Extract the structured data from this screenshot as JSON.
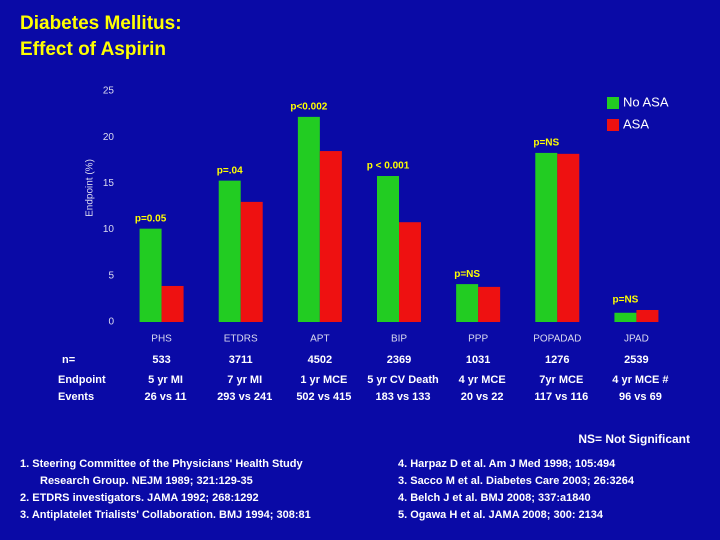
{
  "title": [
    "Diabetes Mellitus:",
    "Effect of Aspirin"
  ],
  "chart_data": {
    "type": "bar",
    "y_label": "Endpoint (%)",
    "categories": [
      "PHS",
      "ETDRS",
      "APT",
      "BIP",
      "PPP",
      "POPADAD",
      "JPAD"
    ],
    "series": [
      {
        "name": "No ASA",
        "color": "#22cc22",
        "values": [
          10.1,
          15.3,
          22.2,
          15.8,
          4.1,
          18.3,
          1.0
        ]
      },
      {
        "name": "ASA",
        "color": "#ee1111",
        "values": [
          3.9,
          13.0,
          18.5,
          10.8,
          3.8,
          18.2,
          1.3
        ]
      }
    ],
    "annotations": [
      "p=0.05",
      "p=.04",
      "p<0.002",
      "p < 0.001",
      "p=NS",
      "p=NS",
      "p=NS"
    ],
    "ylim": [
      0,
      25
    ],
    "yticks": [
      0,
      5,
      10,
      15,
      20,
      25
    ],
    "grid": false,
    "legend": "top-right"
  },
  "study_table": {
    "rows": [
      [
        "n=",
        "533",
        "3711",
        "4502",
        "2369",
        "1031",
        "1276",
        "2539"
      ],
      [
        "Endpoint",
        "5 yr MI",
        "7 yr MI",
        "1 yr MCE",
        "5 yr CV Death",
        "4 yr MCE",
        "7yr MCE",
        "4 yr MCE #"
      ],
      [
        "Events",
        "26 vs 11",
        "293 vs 241",
        "502 vs 415",
        "183 vs 133",
        "20 vs 22",
        "117 vs 116",
        "96 vs 69"
      ]
    ]
  },
  "footnote": "NS= Not Significant",
  "references_left": [
    "1. Steering Committee of the Physicians' Health Study",
    "Research Group. NEJM 1989; 321:129-35",
    "2. ETDRS investigators.  JAMA 1992; 268:1292",
    "3. Antiplatelet Trialists' Collaboration. BMJ 1994; 308:81"
  ],
  "references_right": [
    "4. Harpaz D et al.  Am J Med 1998; 105:494",
    "3. Sacco M et al. Diabetes Care 2003; 26:3264",
    "4. Belch J et al. BMJ 2008; 337:a1840",
    "5. Ogawa H et al. JAMA 2008; 300: 2134"
  ]
}
